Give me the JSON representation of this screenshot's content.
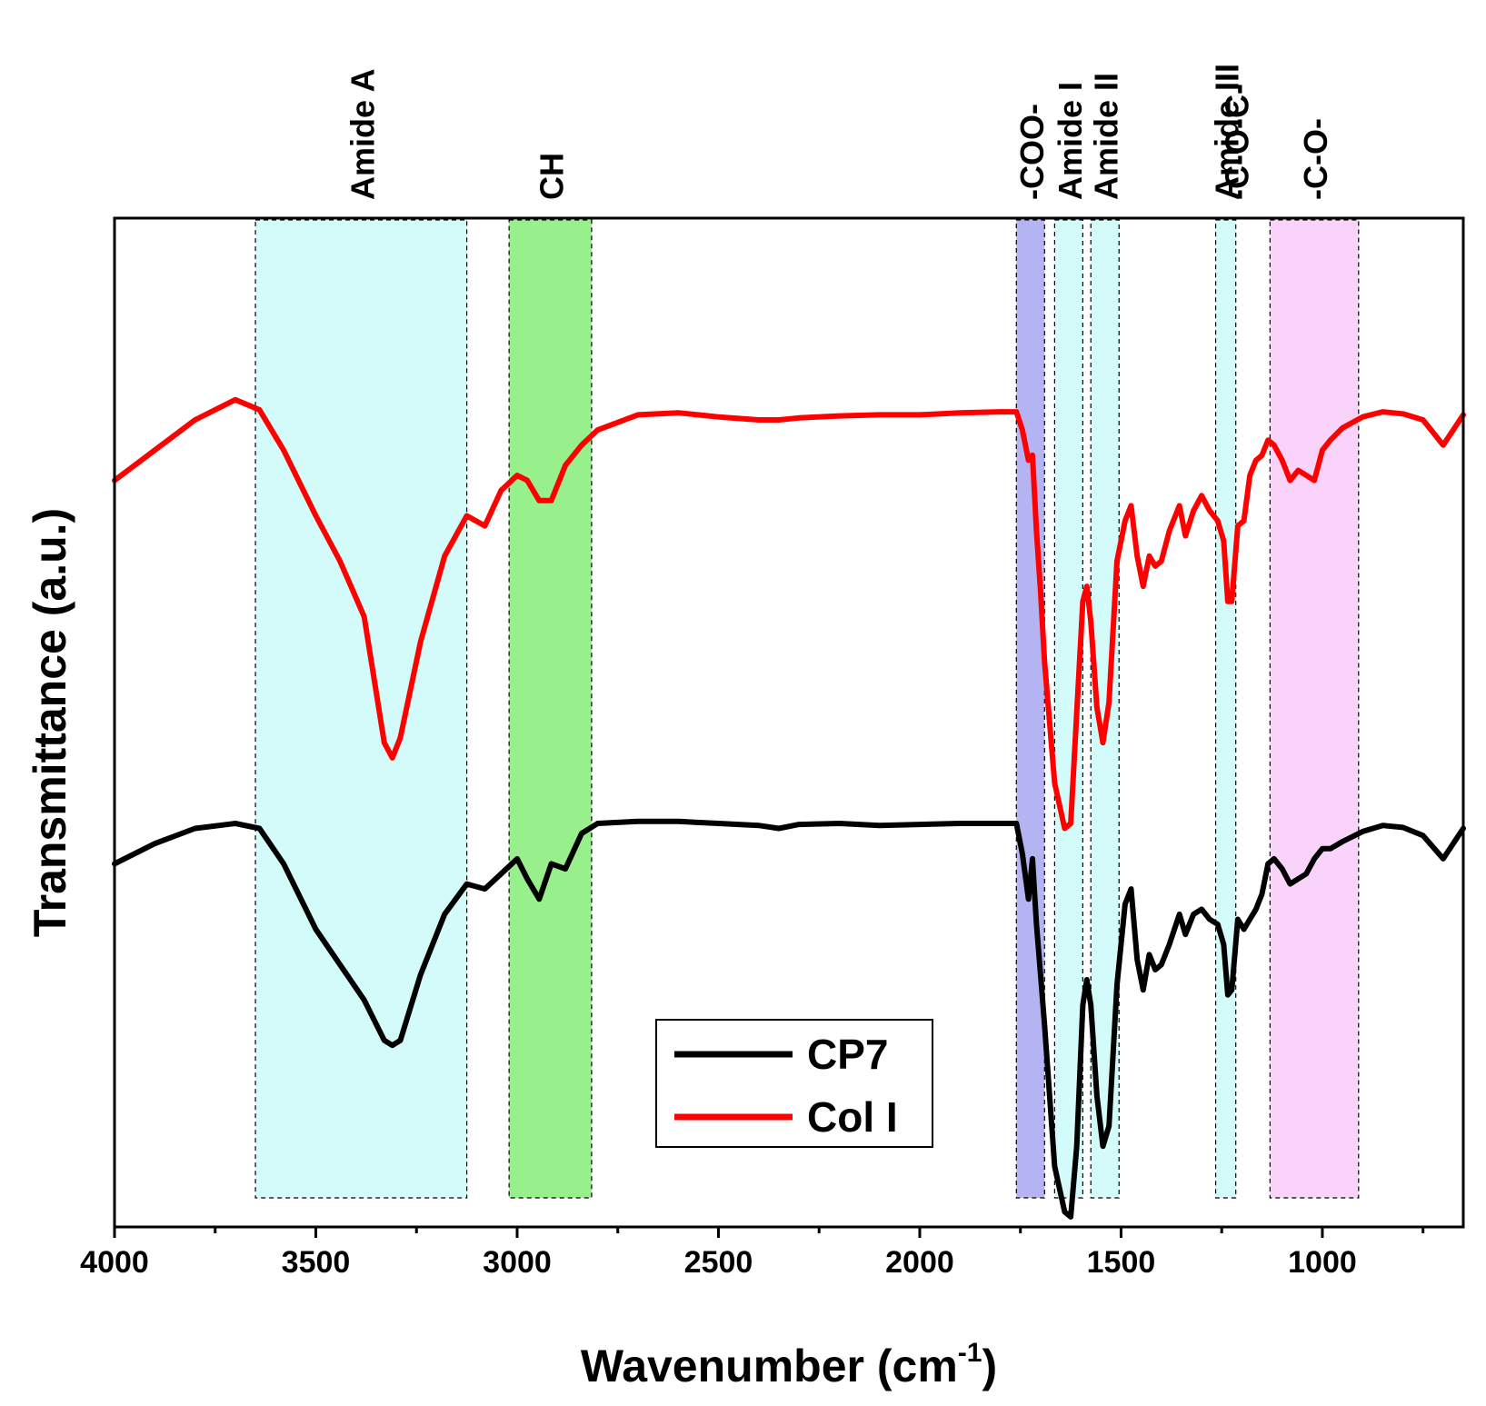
{
  "chart_data": {
    "type": "line",
    "title": "",
    "xlabel": "Wavenumber (cm",
    "xlabel_sup": "-1",
    "xlabel_close": ")",
    "ylabel": "Transmittance (a.u.)",
    "xlim": [
      4000,
      650
    ],
    "ylim": [
      0,
      100
    ],
    "x_reversed": true,
    "grid": false,
    "xticks": [
      4000,
      3500,
      3000,
      2500,
      2000,
      1500,
      1000
    ],
    "xtick_labels": [
      "4000",
      "3500",
      "3000",
      "2500",
      "2000",
      "1500",
      "1000"
    ],
    "legend": {
      "location": "bottom-center",
      "entries": [
        "CP7",
        "Col I"
      ]
    },
    "bands": [
      {
        "label": "Amide A",
        "from": 3650,
        "to": 3125,
        "color": "#d2fbfa"
      },
      {
        "label": "CH",
        "from": 3020,
        "to": 2815,
        "color": "#98f08d"
      },
      {
        "label": "-COO-",
        "from": 1760,
        "to": 1690,
        "color": "#b4b4f2"
      },
      {
        "label": "Amide I",
        "from": 1665,
        "to": 1595,
        "color": "#d2fbfa"
      },
      {
        "label": "Amide II",
        "from": 1575,
        "to": 1505,
        "color": "#d2fbfa"
      },
      {
        "label": "Amide III",
        "from": 1265,
        "to": 1215,
        "color": "#d2fbfa"
      },
      {
        "label": "-C-O-C-",
        "from": 1215,
        "to": 1215,
        "color": "#ffffff"
      },
      {
        "label": "-C-O-",
        "from": 1130,
        "to": 910,
        "color": "#fad3fa"
      }
    ],
    "series": [
      {
        "name": "CP7",
        "color": "#000000",
        "x": [
          4000,
          3900,
          3800,
          3700,
          3640,
          3580,
          3500,
          3440,
          3380,
          3330,
          3310,
          3290,
          3240,
          3180,
          3125,
          3080,
          3040,
          3000,
          2975,
          2945,
          2915,
          2880,
          2840,
          2800,
          2700,
          2600,
          2500,
          2400,
          2350,
          2300,
          2200,
          2100,
          2000,
          1900,
          1800,
          1760,
          1745,
          1730,
          1720,
          1710,
          1700,
          1690,
          1665,
          1640,
          1625,
          1610,
          1595,
          1585,
          1575,
          1560,
          1545,
          1530,
          1510,
          1490,
          1475,
          1460,
          1445,
          1430,
          1415,
          1400,
          1380,
          1355,
          1340,
          1320,
          1300,
          1280,
          1260,
          1245,
          1235,
          1225,
          1210,
          1195,
          1180,
          1165,
          1150,
          1135,
          1120,
          1100,
          1080,
          1060,
          1040,
          1020,
          1000,
          980,
          950,
          900,
          850,
          800,
          750,
          700,
          650
        ],
        "y": [
          36,
          38,
          39.5,
          40,
          39.5,
          36,
          29.5,
          26,
          22.5,
          18.5,
          18,
          18.5,
          25,
          31,
          34,
          33.5,
          35,
          36.5,
          34.5,
          32.5,
          36,
          35.5,
          39,
          40,
          40.2,
          40.2,
          40,
          39.8,
          39.5,
          39.9,
          40,
          39.8,
          39.9,
          40,
          40,
          40,
          37,
          32.5,
          36.5,
          30,
          25,
          20,
          6,
          1.5,
          1,
          8,
          22,
          24.5,
          22,
          13,
          8,
          10,
          24,
          32,
          33.5,
          26.5,
          23.5,
          27,
          25.5,
          26,
          28,
          31,
          29,
          31,
          31.5,
          30.5,
          30,
          28,
          23,
          23.5,
          30.5,
          29.5,
          30.5,
          31.5,
          33,
          36,
          36.5,
          35.5,
          34,
          34.5,
          35,
          36.5,
          37.5,
          37.5,
          38.2,
          39.2,
          39.8,
          39.6,
          38.8,
          36.5,
          39.5
        ]
      },
      {
        "name": "Col I",
        "color": "#ff0000",
        "x": [
          4000,
          3900,
          3800,
          3700,
          3640,
          3580,
          3500,
          3440,
          3380,
          3330,
          3310,
          3290,
          3240,
          3180,
          3125,
          3080,
          3040,
          3000,
          2975,
          2945,
          2915,
          2880,
          2840,
          2800,
          2700,
          2600,
          2500,
          2400,
          2350,
          2300,
          2200,
          2100,
          2000,
          1900,
          1800,
          1760,
          1745,
          1730,
          1720,
          1710,
          1700,
          1690,
          1665,
          1640,
          1625,
          1610,
          1595,
          1585,
          1575,
          1560,
          1545,
          1530,
          1510,
          1490,
          1475,
          1460,
          1445,
          1430,
          1415,
          1400,
          1380,
          1355,
          1340,
          1320,
          1300,
          1280,
          1260,
          1245,
          1235,
          1225,
          1210,
          1195,
          1180,
          1165,
          1150,
          1135,
          1120,
          1100,
          1080,
          1060,
          1040,
          1020,
          1000,
          980,
          950,
          900,
          850,
          800,
          750,
          700,
          650
        ],
        "y": [
          74,
          77,
          80,
          82,
          81,
          77,
          70.5,
          66,
          60.5,
          48,
          46.5,
          48.5,
          58,
          66.5,
          70.5,
          69.5,
          73,
          74.5,
          74,
          72,
          72,
          75.5,
          77.5,
          79,
          80.5,
          80.7,
          80.3,
          80,
          80,
          80.2,
          80.4,
          80.5,
          80.5,
          80.7,
          80.8,
          80.8,
          79,
          76,
          76.5,
          69,
          63,
          56,
          44,
          39.5,
          40,
          51,
          62,
          63.5,
          60,
          51.5,
          48,
          52,
          66,
          70,
          71.5,
          66.5,
          63.5,
          66.5,
          65.5,
          66,
          69,
          71.5,
          68.5,
          71,
          72.5,
          71,
          70,
          68,
          62,
          62,
          69.5,
          70,
          74.5,
          76,
          76.5,
          78,
          77.5,
          76,
          74,
          75,
          74.5,
          74,
          77,
          78,
          79.2,
          80.3,
          80.8,
          80.6,
          80,
          77.5,
          80.5
        ]
      }
    ]
  }
}
